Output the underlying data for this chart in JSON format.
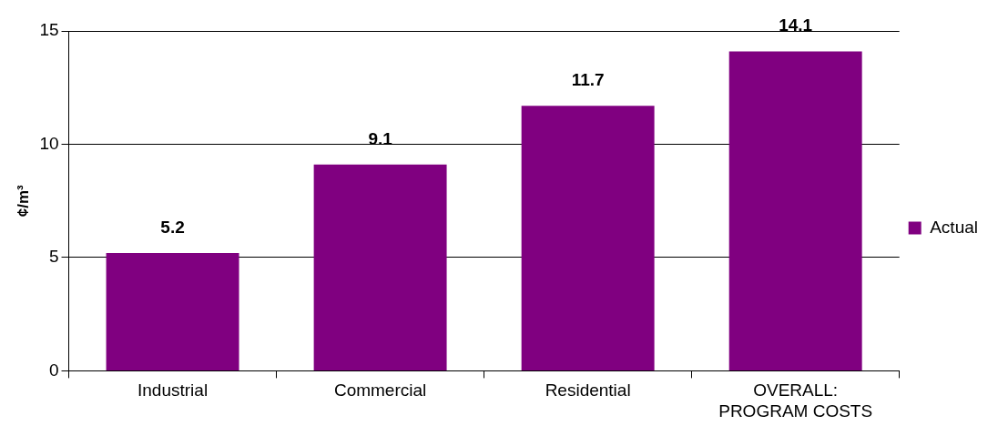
{
  "chart_data": {
    "type": "bar",
    "ylabel": "¢/m³",
    "categories": [
      "Industrial",
      "Commercial",
      "Residential",
      "OVERALL: PROGRAM COSTS"
    ],
    "series": [
      {
        "name": "Actual",
        "color": "#800080",
        "values": [
          5.2,
          9.1,
          11.7,
          14.1
        ]
      }
    ],
    "ylim": [
      0,
      15
    ],
    "yticks": [
      0,
      5,
      10,
      15
    ],
    "grid": "y",
    "legend": "right",
    "data_labels": true
  }
}
